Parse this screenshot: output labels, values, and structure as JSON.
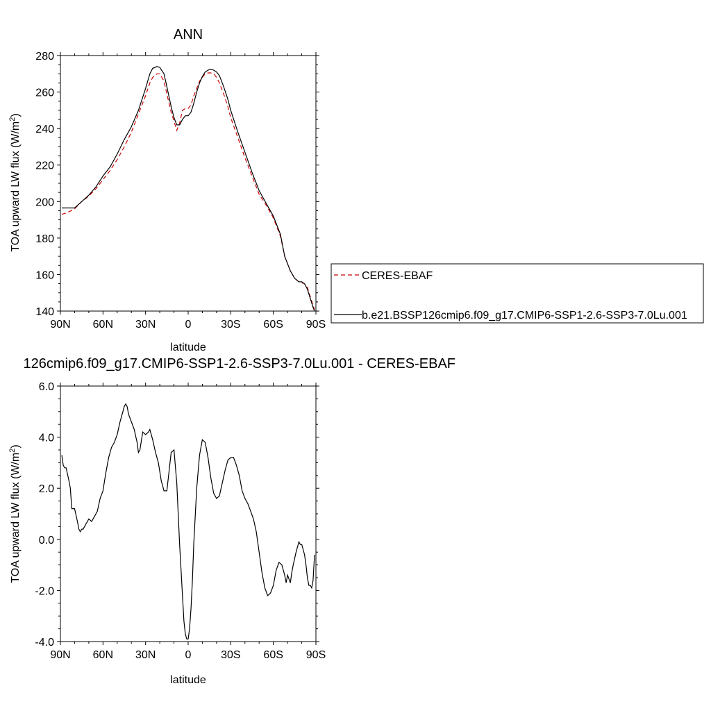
{
  "chart_data": [
    {
      "type": "line",
      "title": "ANN",
      "xlabel": "latitude",
      "ylabel": "TOA upward LW flux (W/m",
      "ylabel_sup": "2",
      "ylabel_close": ")",
      "xlim": [
        90,
        -90
      ],
      "ylim": [
        140,
        280
      ],
      "xticks": [
        90,
        60,
        30,
        0,
        -30,
        -60,
        -90
      ],
      "xticklabels": [
        "90N",
        "60N",
        "30N",
        "0",
        "30S",
        "60S",
        "90S"
      ],
      "yticks": [
        140,
        160,
        180,
        200,
        220,
        240,
        260,
        280
      ],
      "yticklabels": [
        "140",
        "160",
        "180",
        "200",
        "220",
        "240",
        "260",
        "280"
      ],
      "legend_position": "right",
      "series": [
        {
          "name": "CERES-EBAF",
          "color": "#cc0000",
          "style": "dashed",
          "x": [
            89,
            85,
            80,
            75,
            70,
            65,
            60,
            55,
            50,
            45,
            40,
            35,
            30,
            27,
            25,
            22,
            20,
            17,
            15,
            12,
            10,
            8,
            6,
            4,
            2,
            0,
            -2,
            -4,
            -6,
            -8,
            -10,
            -12,
            -14,
            -16,
            -18,
            -20,
            -22,
            -25,
            -28,
            -30,
            -35,
            -40,
            -45,
            -50,
            -55,
            -60,
            -65,
            -68,
            -70,
            -72,
            -75,
            -78,
            -80,
            -82,
            -84,
            -86,
            -88,
            -89
          ],
          "y": [
            193,
            194,
            196,
            200,
            203,
            207,
            212,
            217,
            223,
            230,
            238,
            248,
            258,
            265,
            268,
            270,
            270,
            266,
            259,
            249,
            244,
            239,
            243,
            250,
            251,
            251,
            253,
            258,
            262,
            266,
            268,
            270,
            270.5,
            270.5,
            270,
            268,
            265,
            259,
            252,
            246,
            235,
            224,
            214,
            204,
            198,
            191,
            181,
            170,
            166,
            162,
            158,
            156,
            155.5,
            155,
            153,
            148,
            143,
            141
          ]
        },
        {
          "name": "b.e21.BSSP126cmip6.f09_g17.CMIP6-SSP1-2.6-SSP3-7.0Lu.001",
          "color": "#000000",
          "style": "solid",
          "x": [
            89,
            85,
            80,
            75,
            70,
            65,
            60,
            55,
            50,
            45,
            40,
            35,
            30,
            27,
            25,
            22,
            20,
            17,
            15,
            12,
            10,
            8,
            6,
            4,
            2,
            0,
            -2,
            -4,
            -6,
            -8,
            -10,
            -12,
            -14,
            -16,
            -18,
            -20,
            -22,
            -25,
            -28,
            -30,
            -35,
            -40,
            -45,
            -50,
            -55,
            -60,
            -65,
            -68,
            -70,
            -72,
            -75,
            -78,
            -80,
            -82,
            -84,
            -86,
            -88,
            -89
          ],
          "y": [
            196.5,
            196.5,
            196.5,
            200,
            203.5,
            208,
            214,
            219,
            226,
            234,
            241,
            250,
            262,
            270,
            273,
            274,
            273.5,
            270,
            263,
            252,
            246,
            242,
            242,
            245,
            247,
            247,
            249,
            254,
            260,
            265,
            268.5,
            271,
            272,
            272.5,
            272,
            271,
            269,
            263,
            256,
            250,
            238,
            227,
            216,
            206,
            199,
            192,
            182,
            170,
            166,
            162,
            158,
            156,
            156,
            155,
            152,
            147,
            142,
            140
          ]
        }
      ]
    },
    {
      "type": "line",
      "title": "126cmip6.f09_g17.CMIP6-SSP1-2.6-SSP3-7.0Lu.001 - CERES-EBAF",
      "xlabel": "latitude",
      "ylabel": "TOA upward LW flux (W/m",
      "ylabel_sup": "2",
      "ylabel_close": ")",
      "xlim": [
        90,
        -90
      ],
      "ylim": [
        -4,
        6
      ],
      "xticks": [
        90,
        60,
        30,
        0,
        -30,
        -60,
        -90
      ],
      "xticklabels": [
        "90N",
        "60N",
        "30N",
        "0",
        "30S",
        "60S",
        "90S"
      ],
      "yticks": [
        -4,
        -2,
        0,
        2,
        4,
        6
      ],
      "yticklabels": [
        "-4.0",
        "-2.0",
        "0.0",
        "2.0",
        "4.0",
        "6.0"
      ],
      "series": [
        {
          "color": "#000000",
          "style": "solid",
          "x": [
            89,
            88,
            87,
            86,
            84,
            83,
            82,
            80,
            78,
            77,
            76,
            75,
            74,
            72,
            70,
            68,
            66,
            64,
            62,
            60,
            58,
            56,
            54,
            52,
            50,
            48,
            46,
            45,
            44,
            43,
            42,
            40,
            38,
            36,
            35,
            34,
            32,
            30,
            28,
            27,
            25,
            23,
            21,
            19,
            17,
            15,
            14,
            12,
            10,
            8,
            6,
            4,
            3,
            2,
            1,
            0,
            -1,
            -2,
            -3,
            -4,
            -6,
            -8,
            -10,
            -12,
            -14,
            -16,
            -18,
            -20,
            -22,
            -24,
            -26,
            -28,
            -30,
            -32,
            -34,
            -36,
            -38,
            -40,
            -42,
            -44,
            -46,
            -48,
            -50,
            -52,
            -54,
            -56,
            -58,
            -60,
            -62,
            -64,
            -66,
            -68,
            -69,
            -70,
            -72,
            -73,
            -74,
            -76,
            -78,
            -79,
            -80,
            -81,
            -82,
            -83,
            -84,
            -85,
            -86,
            -87,
            -88,
            -89
          ],
          "y": [
            3.3,
            2.9,
            2.8,
            2.8,
            2.3,
            2.0,
            1.2,
            1.2,
            0.7,
            0.4,
            0.3,
            0.4,
            0.4,
            0.6,
            0.8,
            0.7,
            0.9,
            1.1,
            1.6,
            1.9,
            2.6,
            3.2,
            3.6,
            3.8,
            4.1,
            4.6,
            5.0,
            5.2,
            5.3,
            5.2,
            4.9,
            4.6,
            4.3,
            3.8,
            3.4,
            3.5,
            4.2,
            4.1,
            4.2,
            4.3,
            3.9,
            3.4,
            3.0,
            2.3,
            1.9,
            1.9,
            2.4,
            3.4,
            3.5,
            2.2,
            -0.2,
            -2.2,
            -3.2,
            -3.7,
            -3.9,
            -3.9,
            -3.5,
            -2.7,
            -1.6,
            -0.1,
            2.0,
            3.3,
            3.9,
            3.8,
            3.2,
            2.4,
            1.8,
            1.6,
            1.7,
            2.2,
            2.7,
            3.1,
            3.2,
            3.2,
            2.9,
            2.5,
            1.9,
            1.6,
            1.4,
            1.1,
            0.8,
            0.3,
            -0.5,
            -1.3,
            -1.9,
            -2.2,
            -2.1,
            -1.8,
            -1.2,
            -0.9,
            -1.0,
            -1.4,
            -1.7,
            -1.4,
            -1.7,
            -1.3,
            -1.0,
            -0.5,
            -0.1,
            -0.2,
            -0.2,
            -0.4,
            -0.6,
            -1.0,
            -1.5,
            -1.8,
            -1.8,
            -1.9,
            -1.6,
            -0.6
          ]
        }
      ]
    }
  ]
}
